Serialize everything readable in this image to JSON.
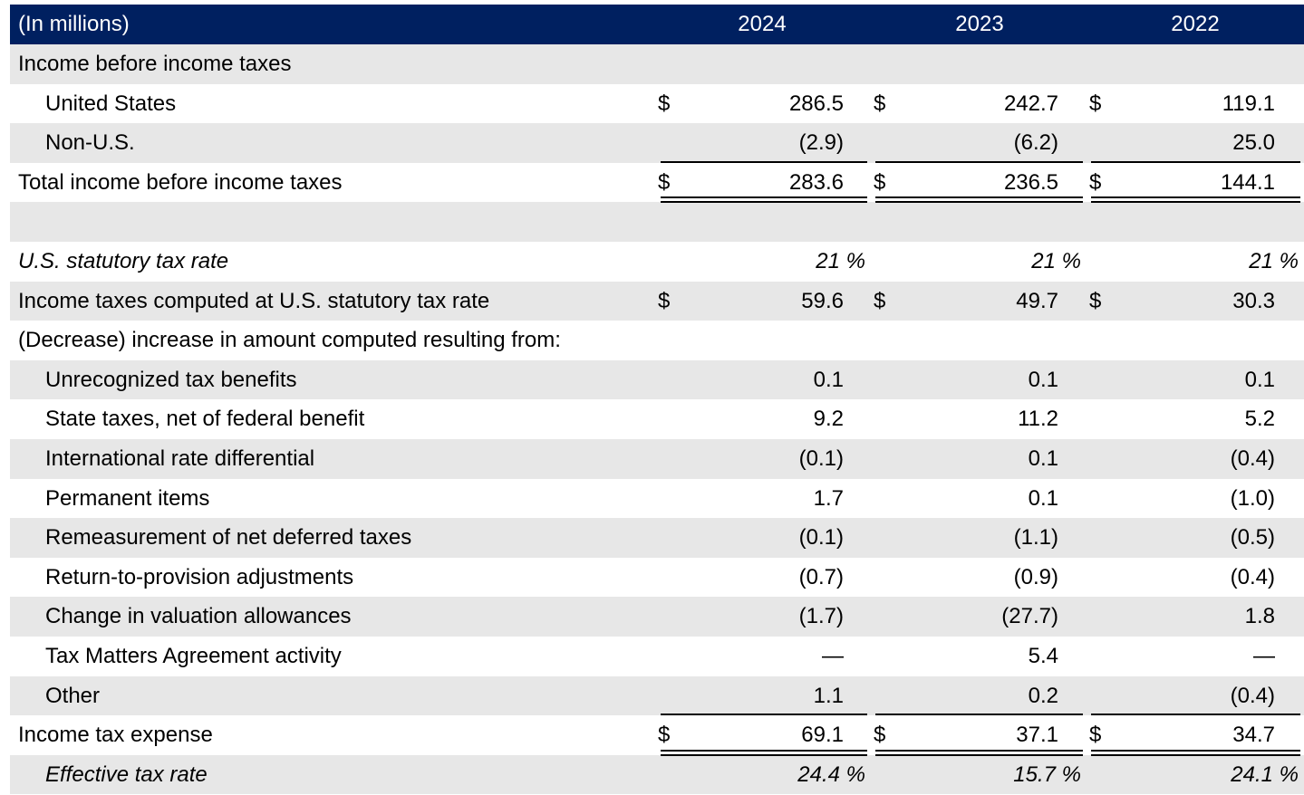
{
  "table": {
    "header": {
      "label": "(In millions)",
      "years": [
        "2024",
        "2023",
        "2022"
      ]
    },
    "rows": [
      {
        "label": "Income before income taxes",
        "indent": false,
        "shade": true,
        "values": [
          "",
          "",
          ""
        ],
        "dollar": false
      },
      {
        "label": "United States",
        "indent": true,
        "shade": false,
        "values": [
          "286.5",
          "242.7",
          "119.1"
        ],
        "dollar": true
      },
      {
        "label": "Non-U.S.",
        "indent": true,
        "shade": true,
        "values": [
          "(2.9)",
          "(6.2)",
          "25.0"
        ],
        "dollar": false
      },
      {
        "label": "Total income before income taxes",
        "indent": false,
        "shade": false,
        "values": [
          "283.6",
          "236.5",
          "144.1"
        ],
        "dollar": true
      },
      {
        "label": "",
        "indent": false,
        "shade": true,
        "values": [
          "",
          "",
          ""
        ],
        "dollar": false
      },
      {
        "label": "U.S. statutory tax rate",
        "indent": false,
        "shade": false,
        "italic": true,
        "percent": [
          "21 %",
          "21 %",
          "21 %"
        ]
      },
      {
        "label": "Income taxes computed at U.S. statutory tax rate",
        "indent": false,
        "shade": true,
        "values": [
          "59.6",
          "49.7",
          "30.3"
        ],
        "dollar": true
      },
      {
        "label": "(Decrease) increase in amount computed resulting from:",
        "indent": false,
        "shade": false,
        "values": [
          "",
          "",
          ""
        ],
        "dollar": false
      },
      {
        "label": "Unrecognized tax benefits",
        "indent": true,
        "shade": true,
        "values": [
          "0.1",
          "0.1",
          "0.1"
        ],
        "dollar": false
      },
      {
        "label": "State taxes, net of federal benefit",
        "indent": true,
        "shade": false,
        "values": [
          "9.2",
          "11.2",
          "5.2"
        ],
        "dollar": false
      },
      {
        "label": "International rate differential",
        "indent": true,
        "shade": true,
        "values": [
          "(0.1)",
          "0.1",
          "(0.4)"
        ],
        "dollar": false
      },
      {
        "label": "Permanent items",
        "indent": true,
        "shade": false,
        "values": [
          "1.7",
          "0.1",
          "(1.0)"
        ],
        "dollar": false
      },
      {
        "label": "Remeasurement of net deferred taxes",
        "indent": true,
        "shade": true,
        "values": [
          "(0.1)",
          "(1.1)",
          "(0.5)"
        ],
        "dollar": false
      },
      {
        "label": "Return-to-provision adjustments",
        "indent": true,
        "shade": false,
        "values": [
          "(0.7)",
          "(0.9)",
          "(0.4)"
        ],
        "dollar": false
      },
      {
        "label": "Change in valuation allowances",
        "indent": true,
        "shade": true,
        "values": [
          "(1.7)",
          "(27.7)",
          "1.8"
        ],
        "dollar": false
      },
      {
        "label": "Tax Matters Agreement activity",
        "indent": true,
        "shade": false,
        "values": [
          "—",
          "5.4",
          "—"
        ],
        "dollar": false
      },
      {
        "label": "Other",
        "indent": true,
        "shade": true,
        "values": [
          "1.1",
          "0.2",
          "(0.4)"
        ],
        "dollar": false
      },
      {
        "label": "Income tax expense",
        "indent": false,
        "shade": false,
        "values": [
          "69.1",
          "37.1",
          "34.7"
        ],
        "dollar": true
      },
      {
        "label": "Effective tax rate",
        "indent": true,
        "shade": true,
        "italic": true,
        "percent": [
          "24.4 %",
          "15.7 %",
          "24.1 %"
        ]
      }
    ],
    "currency_symbol": "$"
  },
  "colors": {
    "header_bg": "#002060",
    "header_text": "#ffffff",
    "shade": "#e7e7e7"
  }
}
